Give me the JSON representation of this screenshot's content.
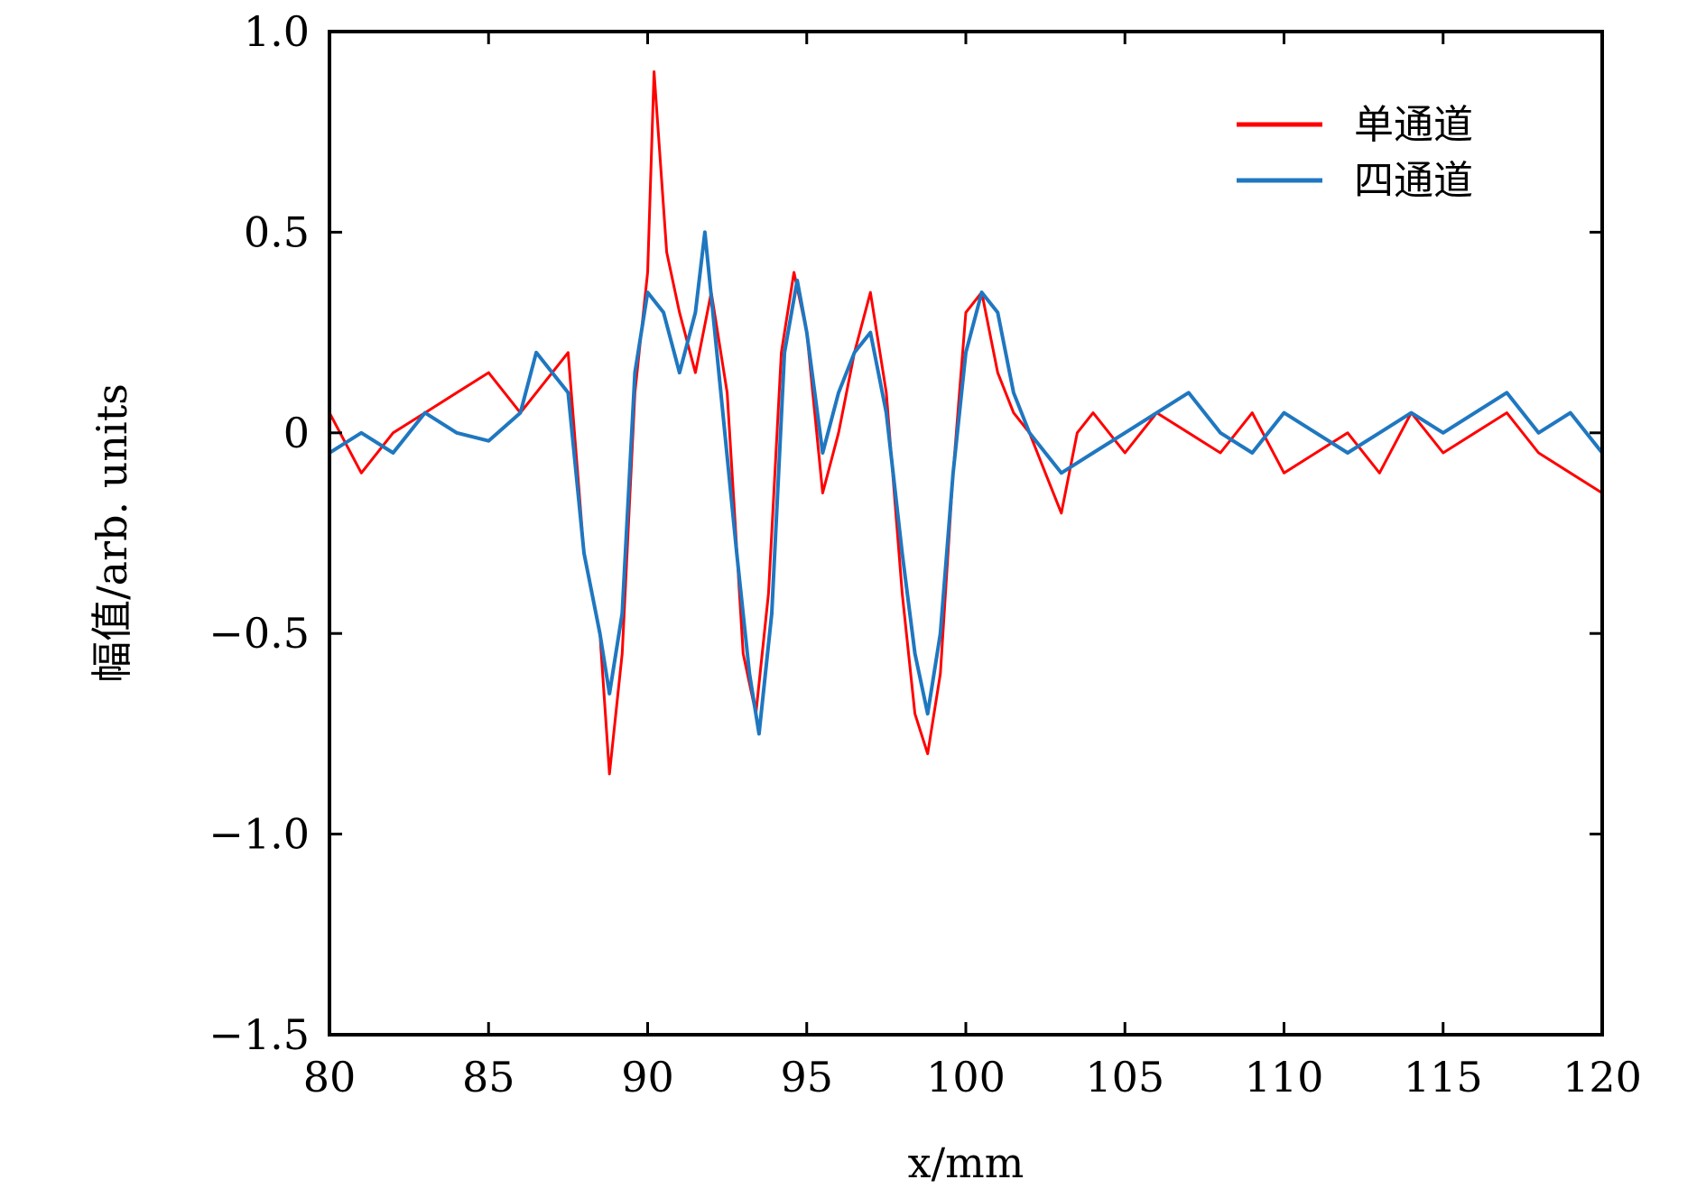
{
  "chart_data": {
    "type": "line",
    "title": "",
    "xlabel": "x/mm",
    "ylabel": "幅值/arb. units",
    "xlim": [
      80,
      120
    ],
    "ylim": [
      -1.5,
      1.0
    ],
    "xticks": [
      80,
      85,
      90,
      95,
      100,
      105,
      110,
      115,
      120
    ],
    "xtick_labels": [
      "80",
      "85",
      "90",
      "95",
      "100",
      "105",
      "110",
      "115",
      "120"
    ],
    "yticks": [
      1.0,
      0.5,
      0,
      -0.5,
      -1.0,
      -1.5
    ],
    "ytick_labels": [
      "1.0",
      "0.5",
      "0",
      "−0.5",
      "−1.0",
      "−1.5"
    ],
    "grid": false,
    "legend_position": "top-right",
    "series": [
      {
        "name": "单通道",
        "color": "#ff0000",
        "x": [
          80,
          81,
          82,
          83,
          84,
          85,
          86,
          87,
          87.5,
          88,
          88.5,
          88.8,
          89.2,
          89.6,
          90,
          90.2,
          90.6,
          91,
          91.5,
          92,
          92.5,
          93,
          93.4,
          93.8,
          94.2,
          94.6,
          95,
          95.5,
          96,
          96.5,
          97,
          97.5,
          98,
          98.4,
          98.8,
          99.2,
          99.6,
          100,
          100.5,
          101,
          101.5,
          102,
          102.5,
          103,
          103.5,
          104,
          105,
          106,
          107,
          108,
          109,
          110,
          111,
          112,
          113,
          114,
          115,
          116,
          117,
          118,
          119,
          120
        ],
        "values": [
          0.05,
          -0.1,
          0.0,
          0.05,
          0.1,
          0.15,
          0.05,
          0.15,
          0.2,
          -0.3,
          -0.5,
          -0.85,
          -0.55,
          0.1,
          0.4,
          0.9,
          0.45,
          0.3,
          0.15,
          0.35,
          0.1,
          -0.55,
          -0.7,
          -0.4,
          0.2,
          0.4,
          0.25,
          -0.15,
          0.0,
          0.2,
          0.35,
          0.1,
          -0.4,
          -0.7,
          -0.8,
          -0.6,
          -0.1,
          0.3,
          0.35,
          0.15,
          0.05,
          0.0,
          -0.1,
          -0.2,
          0.0,
          0.05,
          -0.05,
          0.05,
          0.0,
          -0.05,
          0.05,
          -0.1,
          -0.05,
          0.0,
          -0.1,
          0.05,
          -0.05,
          0.0,
          0.05,
          -0.05,
          -0.1,
          -0.15
        ],
        "values_note_removed": true
      },
      {
        "name": "四通道",
        "color": "#1f77c0",
        "x": [
          80,
          81,
          82,
          83,
          84,
          85,
          86,
          86.5,
          87,
          87.5,
          88,
          88.5,
          88.8,
          89.2,
          89.6,
          90,
          90.5,
          91,
          91.5,
          91.8,
          92.3,
          92.8,
          93.2,
          93.5,
          93.9,
          94.3,
          94.7,
          95,
          95.5,
          96,
          96.5,
          97,
          97.5,
          98,
          98.4,
          98.8,
          99.2,
          99.6,
          100,
          100.5,
          101,
          101.5,
          102,
          102.5,
          103,
          104,
          105,
          106,
          107,
          108,
          109,
          110,
          111,
          112,
          113,
          114,
          115,
          116,
          117,
          118,
          119,
          120
        ],
        "values": [
          -0.05,
          0.0,
          -0.05,
          0.05,
          0.0,
          -0.02,
          0.05,
          0.2,
          0.15,
          0.1,
          -0.3,
          -0.5,
          -0.65,
          -0.45,
          0.15,
          0.35,
          0.3,
          0.15,
          0.3,
          0.5,
          0.1,
          -0.3,
          -0.6,
          -0.75,
          -0.45,
          0.2,
          0.38,
          0.25,
          -0.05,
          0.1,
          0.2,
          0.25,
          0.05,
          -0.3,
          -0.55,
          -0.7,
          -0.5,
          -0.1,
          0.2,
          0.35,
          0.3,
          0.1,
          0.0,
          -0.05,
          -0.1,
          -0.05,
          0.0,
          0.05,
          0.1,
          0.0,
          -0.05,
          0.05,
          0.0,
          -0.05,
          0.0,
          0.05,
          0.0,
          0.05,
          0.1,
          0.0,
          0.05,
          -0.05
        ]
      }
    ]
  }
}
